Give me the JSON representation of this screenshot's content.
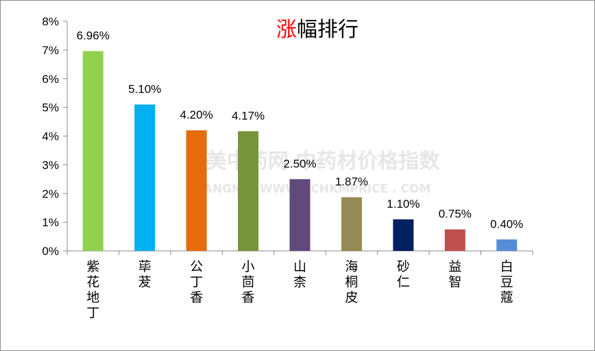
{
  "chart_data": {
    "type": "bar",
    "title_accent": "涨",
    "title_rest": "幅排行",
    "categories": [
      "紫花地丁",
      "荜茇",
      "公丁香",
      "小茴香",
      "山柰",
      "海桐皮",
      "砂仁",
      "益智",
      "白豆蔻"
    ],
    "values": [
      6.96,
      5.1,
      4.2,
      4.17,
      2.5,
      1.87,
      1.1,
      0.75,
      0.4
    ],
    "labels": [
      "6.96%",
      "5.10%",
      "4.20%",
      "4.17%",
      "2.50%",
      "1.87%",
      "1.10%",
      "0.75%",
      "0.40%"
    ],
    "colors": [
      "#92d050",
      "#00b0f0",
      "#e46c0a",
      "#77933c",
      "#604a7b",
      "#948a54",
      "#002060",
      "#c0504d",
      "#558ed5"
    ],
    "yticks": [
      "0%",
      "1%",
      "2%",
      "3%",
      "4%",
      "5%",
      "6%",
      "7%",
      "8%"
    ],
    "ylim": [
      0,
      8
    ],
    "grid": false,
    "title_accent_color": "#ff0000",
    "watermark_cn": "康美中药网 中药材价格指数",
    "watermark_en": "KANGMEI WWW . CHKMPRICE . COM"
  }
}
